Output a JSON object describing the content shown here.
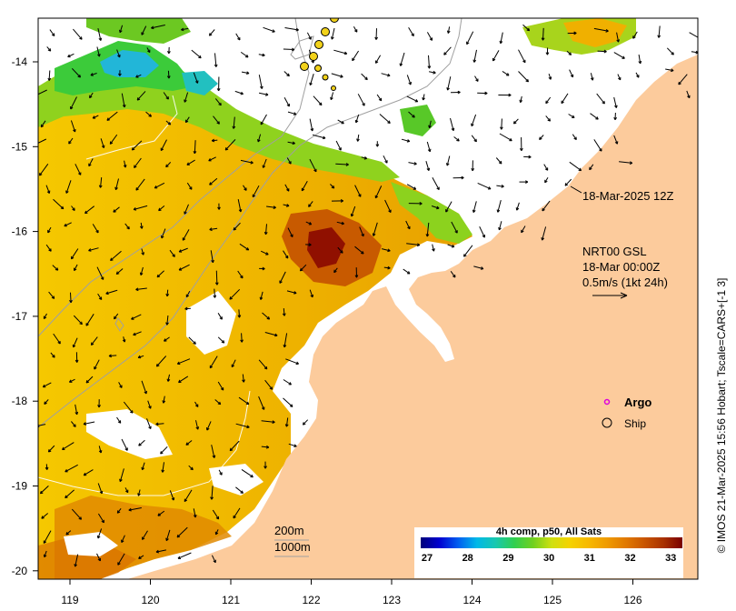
{
  "colors": {
    "land": "#fccb9c",
    "gap": "#ffffff",
    "frame": "#000000",
    "argo": "#dd00dd",
    "ship_fill": "#f2d21a"
  },
  "axes": {
    "x_ticks": [
      "119",
      "120",
      "121",
      "122",
      "123",
      "124",
      "125",
      "126"
    ],
    "y_ticks": [
      "-14",
      "-15",
      "-16",
      "-17",
      "-18",
      "-19",
      "-20"
    ]
  },
  "annotations": {
    "date_label": "18-Mar-2025 12Z",
    "current_title": "NRT00 GSL",
    "current_time": "18-Mar 00:00Z",
    "current_scale": "0.5m/s (1kt 24h)"
  },
  "legend": {
    "argo_label": "Argo",
    "ship_label": "Ship"
  },
  "isobaths": {
    "shallow": "200m",
    "deep": "1000m"
  },
  "colorbar": {
    "title": "4h comp, p50, All Sats",
    "ticks": [
      "27",
      "28",
      "29",
      "30",
      "31",
      "32",
      "33"
    ],
    "colors": [
      "#00007a",
      "#0000d0",
      "#005ef0",
      "#00b8e8",
      "#18c8b0",
      "#30cf50",
      "#70d020",
      "#cfe010",
      "#f5d200",
      "#f7b800",
      "#ef9a00",
      "#e07800",
      "#c85400",
      "#a83000",
      "#7a0000"
    ]
  },
  "side_caption": "© IMOS 21-Mar-2025 15:56 Hobart; Tscale=CARS+[-1 3]"
}
